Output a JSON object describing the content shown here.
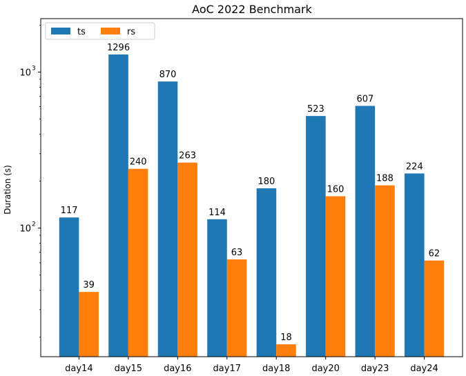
{
  "chart_data": {
    "type": "bar",
    "title": "AoC 2022 Benchmark",
    "xlabel": "",
    "ylabel": "Duration (s)",
    "yscale": "log",
    "ylim": [
      15,
      2200
    ],
    "categories": [
      "day14",
      "day15",
      "day16",
      "day17",
      "day18",
      "day20",
      "day23",
      "day24"
    ],
    "series": [
      {
        "name": "ts",
        "color": "#1f77b4",
        "values": [
          117,
          1296,
          870,
          114,
          180,
          523,
          607,
          224
        ]
      },
      {
        "name": "rs",
        "color": "#ff7f0e",
        "values": [
          39,
          240,
          263,
          63,
          18,
          160,
          188,
          62
        ]
      }
    ],
    "major_ticks": [
      {
        "value": 100,
        "base": "10",
        "exp": "2"
      },
      {
        "value": 1000,
        "base": "10",
        "exp": "3"
      }
    ],
    "legend": {
      "placement": "top-left",
      "columns": 2
    },
    "grid": false
  }
}
